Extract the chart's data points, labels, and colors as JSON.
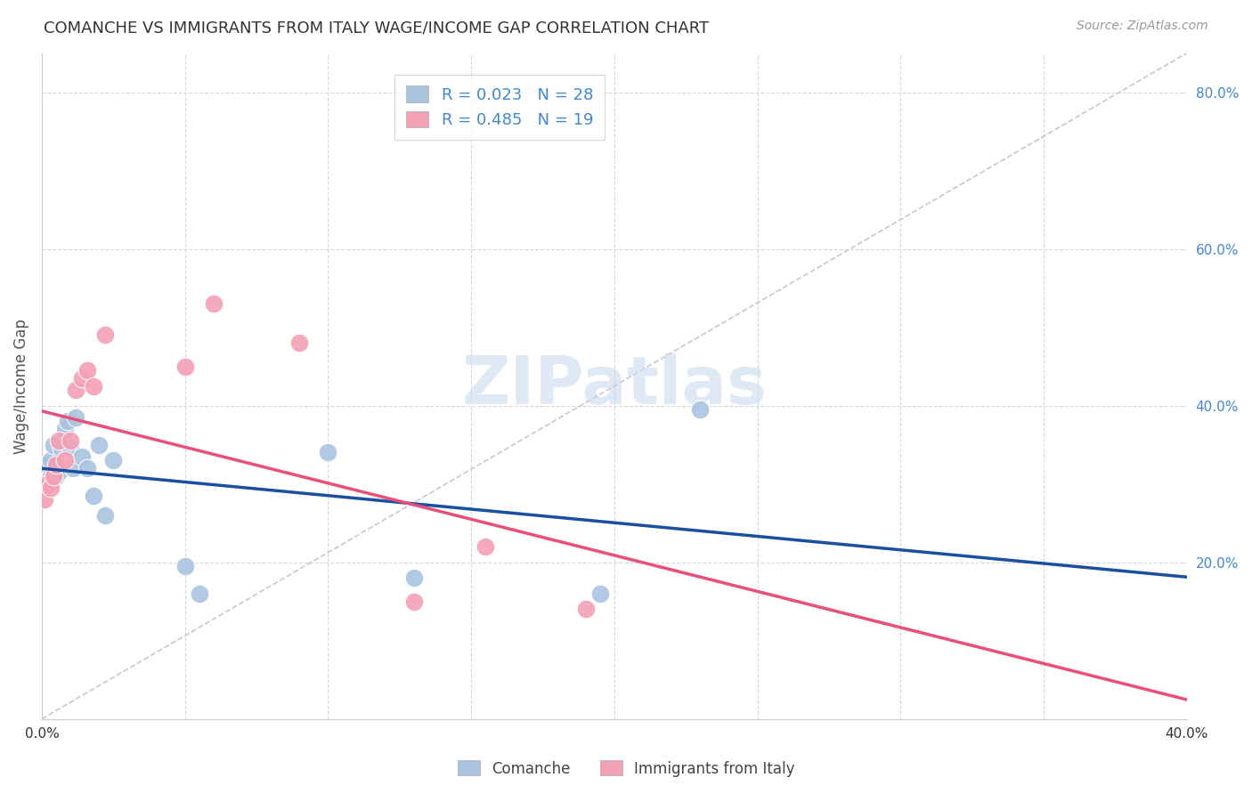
{
  "title": "COMANCHE VS IMMIGRANTS FROM ITALY WAGE/INCOME GAP CORRELATION CHART",
  "source": "Source: ZipAtlas.com",
  "ylabel": "Wage/Income Gap",
  "xlim": [
    0.0,
    0.4
  ],
  "ylim": [
    0.0,
    0.85
  ],
  "x_ticks": [
    0.0,
    0.05,
    0.1,
    0.15,
    0.2,
    0.25,
    0.3,
    0.35,
    0.4
  ],
  "x_tick_labels": [
    "0.0%",
    "",
    "",
    "",
    "",
    "",
    "",
    "",
    "40.0%"
  ],
  "y_ticks_right": [
    0.2,
    0.4,
    0.6,
    0.8
  ],
  "y_tick_labels_right": [
    "20.0%",
    "40.0%",
    "60.0%",
    "80.0%"
  ],
  "comanche_color": "#aac4e0",
  "italy_color": "#f4a0b5",
  "comanche_line_color": "#1a4fa0",
  "italy_line_color": "#e8507a",
  "diagonal_color": "#c8c8c8",
  "R_comanche": 0.023,
  "N_comanche": 28,
  "R_italy": 0.485,
  "N_italy": 19,
  "legend_label1": "Comanche",
  "legend_label2": "Immigrants from Italy",
  "comanche_x": [
    0.001,
    0.001,
    0.002,
    0.002,
    0.003,
    0.003,
    0.004,
    0.004,
    0.005,
    0.006,
    0.007,
    0.008,
    0.009,
    0.01,
    0.011,
    0.012,
    0.014,
    0.016,
    0.018,
    0.02,
    0.022,
    0.025,
    0.05,
    0.055,
    0.1,
    0.13,
    0.195,
    0.23
  ],
  "comanche_y": [
    0.295,
    0.315,
    0.305,
    0.325,
    0.31,
    0.33,
    0.31,
    0.35,
    0.31,
    0.315,
    0.345,
    0.37,
    0.38,
    0.345,
    0.32,
    0.385,
    0.335,
    0.32,
    0.285,
    0.35,
    0.26,
    0.33,
    0.195,
    0.16,
    0.34,
    0.18,
    0.16,
    0.395
  ],
  "italy_x": [
    0.001,
    0.002,
    0.003,
    0.004,
    0.005,
    0.006,
    0.008,
    0.01,
    0.012,
    0.014,
    0.016,
    0.018,
    0.022,
    0.05,
    0.06,
    0.09,
    0.13,
    0.155,
    0.19
  ],
  "italy_y": [
    0.28,
    0.3,
    0.295,
    0.31,
    0.325,
    0.355,
    0.33,
    0.355,
    0.42,
    0.435,
    0.445,
    0.425,
    0.49,
    0.45,
    0.53,
    0.48,
    0.15,
    0.22,
    0.14
  ],
  "watermark": "ZIPatlas",
  "background_color": "#ffffff",
  "grid_color": "#d8d8d8"
}
